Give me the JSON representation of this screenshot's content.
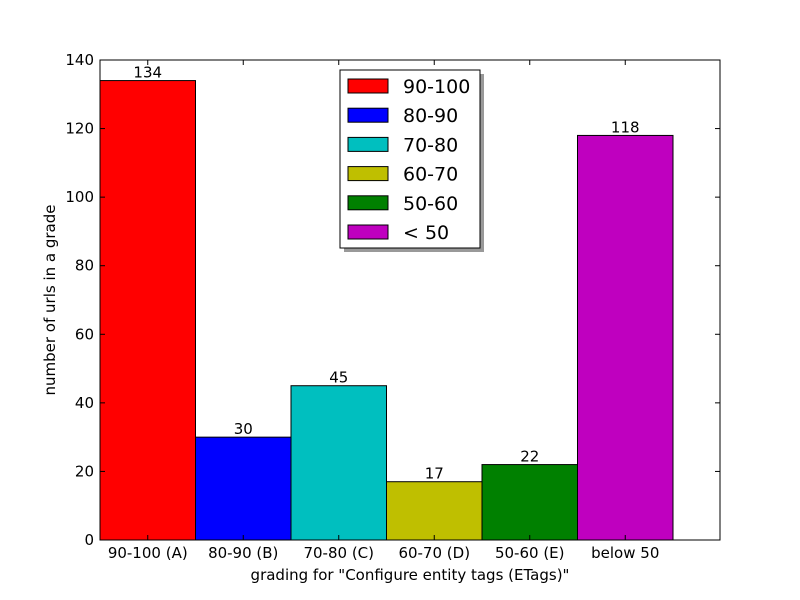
{
  "chart_data": {
    "type": "bar",
    "categories": [
      "90-100 (A)",
      "80-90 (B)",
      "70-80 (C)",
      "60-70 (D)",
      "50-60 (E)",
      "below 50"
    ],
    "values": [
      134,
      30,
      45,
      17,
      22,
      118
    ],
    "data_labels": [
      "134",
      "30",
      "45",
      "17",
      "22",
      "118"
    ],
    "colors": [
      "#ff0000",
      "#0000ff",
      "#00bfbf",
      "#bfbf00",
      "#008000",
      "#bf00bf"
    ],
    "xlabel": "grading for \"Configure entity tags (ETags)\"",
    "ylabel": "number of urls in a grade",
    "ylim": [
      0,
      140
    ],
    "yticks": [
      "0",
      "20",
      "40",
      "60",
      "80",
      "100",
      "120",
      "140"
    ],
    "grid": false,
    "legend": {
      "placement": "top-center",
      "entries": [
        "90-100",
        "80-90",
        "70-80",
        "60-70",
        "50-60",
        "< 50"
      ]
    }
  }
}
